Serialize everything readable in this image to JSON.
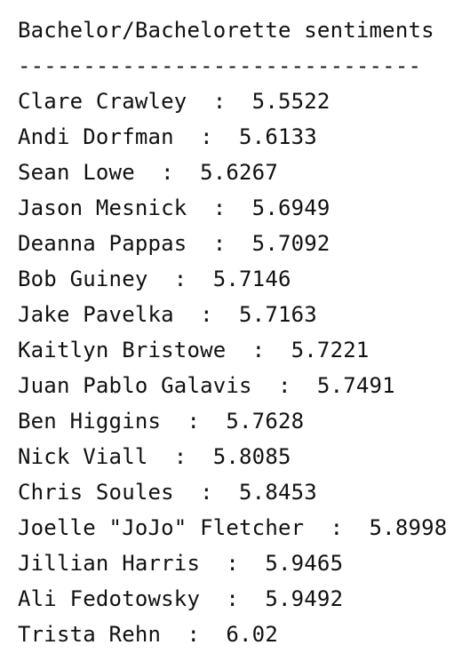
{
  "output": {
    "title": "Bachelor/Bachelorette sentiments",
    "separator": "-------------------------------",
    "rows": [
      "Clare Crawley  :  5.5522",
      "Andi Dorfman  :  5.6133",
      "Sean Lowe  :  5.6267",
      "Jason Mesnick  :  5.6949",
      "Deanna Pappas  :  5.7092",
      "Bob Guiney  :  5.7146",
      "Jake Pavelka  :  5.7163",
      "Kaitlyn Bristowe  :  5.7221",
      "Juan Pablo Galavis  :  5.7491",
      "Ben Higgins  :  5.7628",
      "Nick Viall  :  5.8085",
      "Chris Soules  :  5.8453",
      "Joelle \"JoJo\" Fletcher  :  5.8998",
      "Jillian Harris  :  5.9465",
      "Ali Fedotowsky  :  5.9492",
      "Trista Rehn  :  6.02"
    ]
  }
}
